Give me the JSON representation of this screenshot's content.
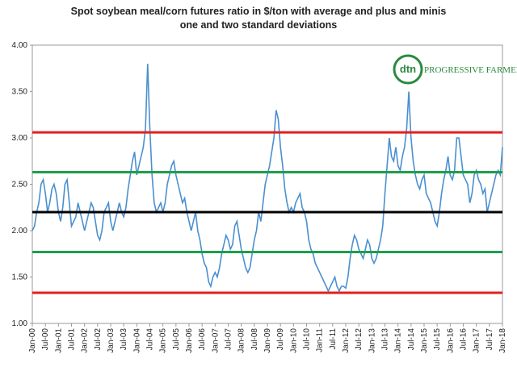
{
  "chart_data": {
    "type": "line",
    "title": [
      "Spot soybean meal/corn futures ratio in $/ton with average and plus and minis",
      "one and two standard deviations"
    ],
    "logo": {
      "badge": "dtn",
      "text": "PROGRESSIVE FARMER"
    },
    "categories": [
      "Jan-00",
      null,
      null,
      null,
      null,
      null,
      "Jul-00",
      null,
      null,
      null,
      null,
      null,
      "Jan-01",
      null,
      null,
      null,
      null,
      null,
      "Jul-01",
      null,
      null,
      null,
      null,
      null,
      "Jan-02",
      null,
      null,
      null,
      null,
      null,
      "Jul-02",
      null,
      null,
      null,
      null,
      null,
      "Jan-03",
      null,
      null,
      null,
      null,
      null,
      "Jul-03",
      null,
      null,
      null,
      null,
      null,
      "Jan-04",
      null,
      null,
      null,
      null,
      null,
      "Jul-04",
      null,
      null,
      null,
      null,
      null,
      "Jan-05",
      null,
      null,
      null,
      null,
      null,
      "Jul-05",
      null,
      null,
      null,
      null,
      null,
      "Jan-06",
      null,
      null,
      null,
      null,
      null,
      "Jul-06",
      null,
      null,
      null,
      null,
      null,
      "Jan-07",
      null,
      null,
      null,
      null,
      null,
      "Jul-07",
      null,
      null,
      null,
      null,
      null,
      "Jan-08",
      null,
      null,
      null,
      null,
      null,
      "Jul-08",
      null,
      null,
      null,
      null,
      null,
      "Jan-09",
      null,
      null,
      null,
      null,
      null,
      "Jul-09",
      null,
      null,
      null,
      null,
      null,
      "Jan-10",
      null,
      null,
      null,
      null,
      null,
      "Jul-10",
      null,
      null,
      null,
      null,
      null,
      "Jan-11",
      null,
      null,
      null,
      null,
      null,
      "Jul-11",
      null,
      null,
      null,
      null,
      null,
      "Jan-12",
      null,
      null,
      null,
      null,
      null,
      "Jul-12",
      null,
      null,
      null,
      null,
      null,
      "Jan-13",
      null,
      null,
      null,
      null,
      null,
      "Jul-13",
      null,
      null,
      null,
      null,
      null,
      "Jan-14",
      null,
      null,
      null,
      null,
      null,
      "Jul-14",
      null,
      null,
      null,
      null,
      null,
      "Jan-15",
      null,
      null,
      null,
      null,
      null,
      "Jul-15",
      null,
      null,
      null,
      null,
      null,
      "Jan-16",
      null,
      null,
      null,
      null,
      null,
      "Jul-16",
      null,
      null,
      null,
      null,
      null,
      "Jan-17",
      null,
      null,
      null,
      null,
      null,
      "Jul-17",
      null,
      null,
      null,
      null,
      null,
      "Jan-18"
    ],
    "series": [
      {
        "color": "#4a8fd0",
        "values": [
          2.0,
          2.05,
          2.2,
          2.3,
          2.5,
          2.55,
          2.4,
          2.2,
          2.3,
          2.45,
          2.5,
          2.4,
          2.2,
          2.1,
          2.25,
          2.5,
          2.55,
          2.3,
          2.05,
          2.1,
          2.15,
          2.3,
          2.2,
          2.1,
          2.0,
          2.1,
          2.2,
          2.3,
          2.25,
          2.1,
          1.95,
          1.9,
          2.0,
          2.2,
          2.25,
          2.3,
          2.1,
          2.0,
          2.1,
          2.2,
          2.3,
          2.2,
          2.15,
          2.25,
          2.45,
          2.6,
          2.75,
          2.85,
          2.6,
          2.7,
          2.8,
          2.9,
          3.1,
          3.8,
          3.1,
          2.6,
          2.3,
          2.2,
          2.25,
          2.3,
          2.2,
          2.3,
          2.5,
          2.6,
          2.7,
          2.75,
          2.6,
          2.5,
          2.4,
          2.3,
          2.35,
          2.2,
          2.1,
          2.0,
          2.1,
          2.2,
          2.0,
          1.9,
          1.75,
          1.65,
          1.6,
          1.45,
          1.4,
          1.5,
          1.55,
          1.5,
          1.6,
          1.75,
          1.85,
          1.95,
          1.9,
          1.8,
          1.85,
          2.05,
          2.1,
          1.95,
          1.8,
          1.7,
          1.6,
          1.55,
          1.6,
          1.75,
          1.9,
          2.0,
          2.2,
          2.1,
          2.3,
          2.5,
          2.6,
          2.7,
          2.85,
          3.0,
          3.3,
          3.2,
          2.9,
          2.7,
          2.45,
          2.3,
          2.2,
          2.25,
          2.2,
          2.3,
          2.35,
          2.4,
          2.25,
          2.2,
          2.1,
          1.9,
          1.8,
          1.75,
          1.65,
          1.6,
          1.55,
          1.5,
          1.45,
          1.4,
          1.35,
          1.4,
          1.45,
          1.5,
          1.4,
          1.35,
          1.4,
          1.4,
          1.38,
          1.5,
          1.7,
          1.85,
          1.95,
          1.9,
          1.8,
          1.75,
          1.7,
          1.8,
          1.9,
          1.85,
          1.7,
          1.65,
          1.7,
          1.8,
          1.9,
          2.05,
          2.4,
          2.7,
          3.0,
          2.8,
          2.75,
          2.9,
          2.7,
          2.65,
          2.8,
          2.9,
          3.1,
          3.5,
          3.0,
          2.75,
          2.6,
          2.5,
          2.45,
          2.55,
          2.6,
          2.4,
          2.35,
          2.3,
          2.2,
          2.1,
          2.05,
          2.2,
          2.4,
          2.55,
          2.65,
          2.8,
          2.6,
          2.55,
          2.65,
          3.0,
          3.0,
          2.8,
          2.6,
          2.55,
          2.5,
          2.3,
          2.4,
          2.6,
          2.65,
          2.55,
          2.5,
          2.4,
          2.45,
          2.2,
          2.3,
          2.4,
          2.5,
          2.6,
          2.65,
          2.6,
          2.9
        ]
      }
    ],
    "reference_lines": [
      {
        "value": 3.06,
        "color": "#e02020"
      },
      {
        "value": 2.63,
        "color": "#1e9e4a"
      },
      {
        "value": 2.2,
        "color": "#000000"
      },
      {
        "value": 1.77,
        "color": "#1e9e4a"
      },
      {
        "value": 1.33,
        "color": "#e02020"
      }
    ],
    "ylim": [
      1,
      4
    ],
    "yticks": [
      {
        "value": 1,
        "label": "1.00"
      },
      {
        "value": 1.5,
        "label": "1.50"
      },
      {
        "value": 2,
        "label": "2.00"
      },
      {
        "value": 2.5,
        "label": "2.50"
      },
      {
        "value": 3,
        "label": "3.00"
      },
      {
        "value": 3.5,
        "label": "3.50"
      },
      {
        "value": 4,
        "label": "4.00"
      }
    ],
    "grid": false
  }
}
